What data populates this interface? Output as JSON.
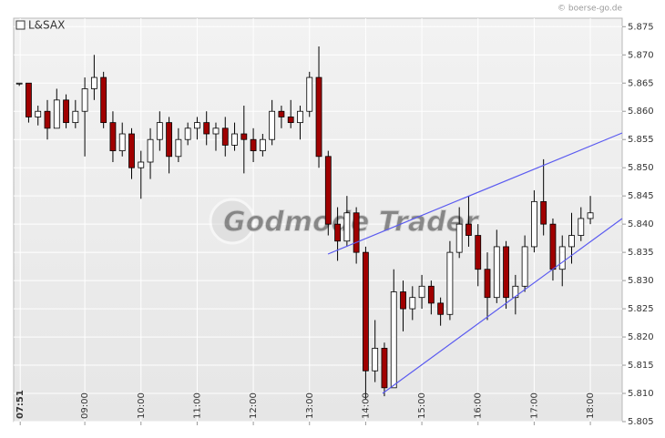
{
  "chart_data": {
    "type": "candlestick",
    "title": "L&SAX",
    "credit": "© boerse-go.de",
    "watermark": "Godmode Trader",
    "x": [
      470,
      480,
      490,
      500,
      510,
      520,
      530,
      540,
      550,
      560,
      570,
      580,
      590,
      600,
      610,
      620,
      630,
      640,
      650,
      660,
      670,
      680,
      690,
      700,
      710,
      720,
      730,
      740,
      750,
      760,
      770,
      780,
      790,
      800,
      810,
      820,
      830,
      840,
      850,
      860,
      870,
      880,
      890,
      900,
      910,
      920,
      930,
      940,
      950,
      960,
      970,
      980,
      990,
      1000,
      1010,
      1020,
      1030,
      1040,
      1050,
      1060,
      1070,
      1080
    ],
    "open": [
      5.865,
      5.865,
      5.859,
      5.86,
      5.857,
      5.862,
      5.858,
      5.86,
      5.864,
      5.866,
      5.858,
      5.853,
      5.856,
      5.85,
      5.851,
      5.855,
      5.858,
      5.852,
      5.855,
      5.857,
      5.858,
      5.856,
      5.857,
      5.854,
      5.856,
      5.855,
      5.853,
      5.855,
      5.86,
      5.859,
      5.858,
      5.86,
      5.866,
      5.852,
      5.84,
      5.837,
      5.842,
      5.835,
      5.814,
      5.818,
      5.811,
      5.828,
      5.825,
      5.827,
      5.829,
      5.826,
      5.824,
      5.835,
      5.84,
      5.838,
      5.832,
      5.827,
      5.836,
      5.827,
      5.829,
      5.836,
      5.844,
      5.84,
      5.832,
      5.836,
      5.838,
      5.841
    ],
    "high": [
      5.865,
      5.865,
      5.861,
      5.862,
      5.864,
      5.863,
      5.862,
      5.866,
      5.87,
      5.867,
      5.86,
      5.858,
      5.857,
      5.853,
      5.857,
      5.86,
      5.859,
      5.857,
      5.858,
      5.859,
      5.86,
      5.858,
      5.859,
      5.858,
      5.861,
      5.857,
      5.856,
      5.862,
      5.861,
      5.862,
      5.861,
      5.867,
      5.8715,
      5.853,
      5.843,
      5.845,
      5.843,
      5.836,
      5.823,
      5.819,
      5.832,
      5.83,
      5.829,
      5.831,
      5.83,
      5.827,
      5.837,
      5.843,
      5.845,
      5.84,
      5.835,
      5.839,
      5.837,
      5.831,
      5.838,
      5.846,
      5.8515,
      5.841,
      5.838,
      5.842,
      5.843,
      5.845
    ],
    "low": [
      5.8645,
      5.858,
      5.8575,
      5.855,
      5.857,
      5.857,
      5.857,
      5.852,
      5.862,
      5.857,
      5.851,
      5.852,
      5.848,
      5.8445,
      5.848,
      5.853,
      5.849,
      5.851,
      5.854,
      5.855,
      5.854,
      5.853,
      5.852,
      5.853,
      5.849,
      5.851,
      5.852,
      5.854,
      5.857,
      5.857,
      5.855,
      5.859,
      5.85,
      5.838,
      5.8335,
      5.836,
      5.833,
      5.809,
      5.812,
      5.8095,
      5.811,
      5.821,
      5.823,
      5.825,
      5.824,
      5.822,
      5.823,
      5.834,
      5.836,
      5.829,
      5.823,
      5.826,
      5.825,
      5.824,
      5.828,
      5.835,
      5.838,
      5.83,
      5.829,
      5.833,
      5.837,
      5.84
    ],
    "close": [
      5.865,
      5.859,
      5.86,
      5.857,
      5.862,
      5.858,
      5.86,
      5.864,
      5.866,
      5.858,
      5.853,
      5.856,
      5.85,
      5.851,
      5.855,
      5.858,
      5.852,
      5.855,
      5.857,
      5.858,
      5.856,
      5.857,
      5.854,
      5.856,
      5.855,
      5.853,
      5.855,
      5.86,
      5.859,
      5.858,
      5.86,
      5.866,
      5.852,
      5.84,
      5.837,
      5.842,
      5.835,
      5.814,
      5.818,
      5.811,
      5.828,
      5.825,
      5.827,
      5.829,
      5.826,
      5.824,
      5.835,
      5.84,
      5.838,
      5.832,
      5.827,
      5.836,
      5.827,
      5.829,
      5.836,
      5.844,
      5.84,
      5.832,
      5.836,
      5.838,
      5.841,
      5.842
    ],
    "up_color": "#ffffff",
    "down_color": "#a00000",
    "wick_color": "#000000",
    "xlim": [
      464,
      1114
    ],
    "ylim": [
      5.805,
      5.8765
    ],
    "xticks": [
      {
        "value": 471,
        "label": "07:51"
      },
      {
        "value": 540,
        "label": "09:00"
      },
      {
        "value": 600,
        "label": "10:00"
      },
      {
        "value": 660,
        "label": "11:00"
      },
      {
        "value": 720,
        "label": "12:00"
      },
      {
        "value": 780,
        "label": "13:00"
      },
      {
        "value": 840,
        "label": "14:00"
      },
      {
        "value": 900,
        "label": "15:00"
      },
      {
        "value": 960,
        "label": "16:00"
      },
      {
        "value": 1020,
        "label": "17:00"
      },
      {
        "value": 1080,
        "label": "18:00"
      }
    ],
    "yticks": [
      5.805,
      {
        "value": 5.81,
        "label": "5.810"
      },
      5.815,
      {
        "value": 5.82,
        "label": "5.820"
      },
      5.825,
      {
        "value": 5.83,
        "label": "5.830"
      },
      5.835,
      {
        "value": 5.84,
        "label": "5.840"
      },
      5.845,
      {
        "value": 5.85,
        "label": "5.850"
      },
      5.855,
      {
        "value": 5.86,
        "label": "5.860"
      },
      5.865,
      {
        "value": 5.87,
        "label": "5.870"
      },
      5.875
    ],
    "grid": true
  }
}
